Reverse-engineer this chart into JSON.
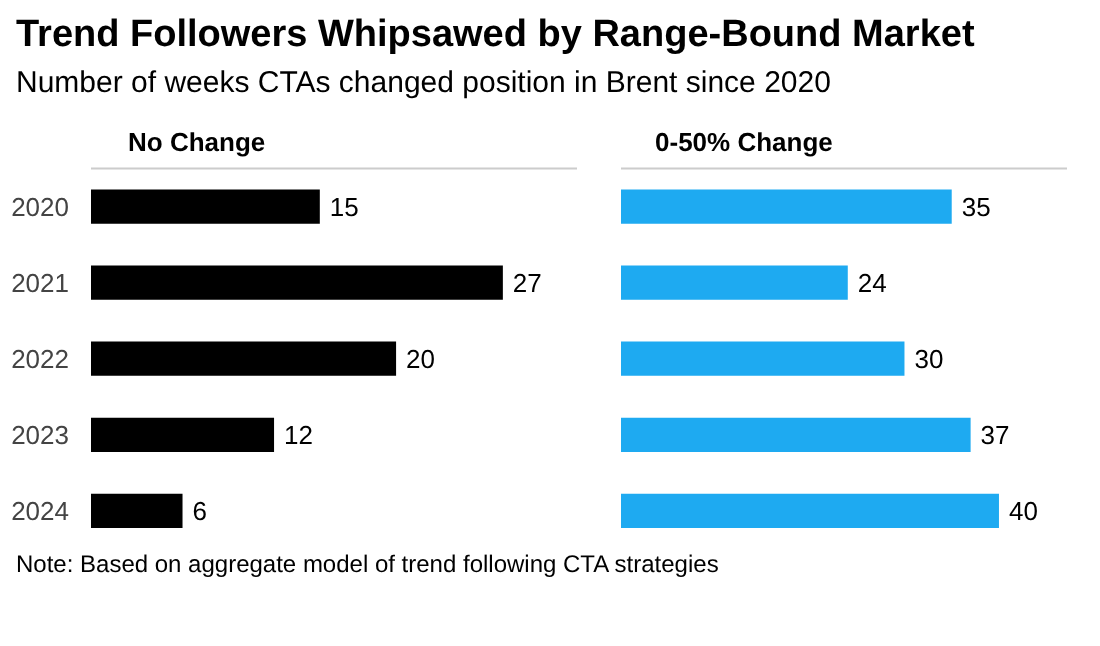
{
  "chart_data": [
    {
      "type": "bar",
      "orientation": "horizontal",
      "title": "Trend Followers Whipsawed by Range-Bound Market",
      "subtitle": "Number of weeks CTAs changed position in Brent since 2020",
      "xlabel": "No Change",
      "categories": [
        "2020",
        "2021",
        "2022",
        "2023",
        "2024"
      ],
      "values": [
        15,
        27,
        20,
        12,
        6
      ],
      "color": "#000000",
      "data_labels": true,
      "tick_labels": "y",
      "grid": false,
      "annotations": [
        "Note: Based on aggregate model of trend following CTA strategies"
      ]
    },
    {
      "type": "bar",
      "orientation": "horizontal",
      "xlabel": "0-50% Change",
      "categories": [
        "2020",
        "2021",
        "2022",
        "2023",
        "2024"
      ],
      "values": [
        35,
        24,
        30,
        37,
        40
      ],
      "color": "#1eaaf1",
      "data_labels": true,
      "tick_labels": false,
      "grid": false
    }
  ]
}
